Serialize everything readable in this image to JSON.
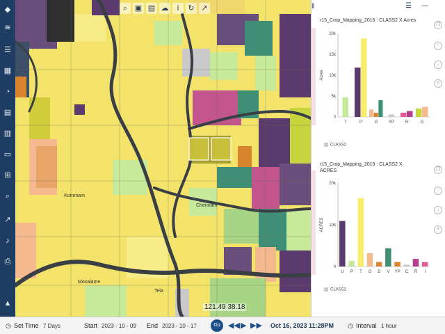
{
  "toolbar_left": {
    "icons": [
      "layers-icon",
      "stack-icon",
      "list-icon",
      "grid-icon",
      "pie-icon",
      "building-icon",
      "map-icon",
      "document-icon",
      "tree-icon",
      "search-icon",
      "chart-icon",
      "bell-icon",
      "print-icon",
      "compass-icon"
    ]
  },
  "map": {
    "toolbar_icons": [
      "zoom-icon",
      "save-icon",
      "document-icon",
      "cloud-icon",
      "info-icon",
      "refresh-icon",
      "share-icon"
    ],
    "coordinate": "121.49 38.18",
    "places": [
      "Moxalame",
      "Kommam",
      "Chennam",
      "Tela"
    ]
  },
  "panel": {
    "chart1_title": "r15_Crop_Mapping_2016 : CLASS2 X Acres",
    "chart1_legend": "CLASS2",
    "chart2_title_line1": "r15_Crop_Mapping_2019 : CLASS2 X",
    "chart2_title_line2": "ACRES",
    "chart2_legend": "CLASS2"
  },
  "chart_data": [
    {
      "type": "bar",
      "title": "r15_Crop_Mapping_2016 : CLASS2 X Acres",
      "xlabel": "",
      "ylabel": "Acres",
      "categories": [
        "T",
        "P",
        "D",
        "YP",
        "R",
        "G"
      ],
      "yticks": [
        "0",
        "5k",
        "10k",
        "15k",
        "20k"
      ],
      "ylim": [
        0,
        20000
      ],
      "bars": [
        {
          "category": "T",
          "value": 4700,
          "color": "#c6e99a"
        },
        {
          "category": "P",
          "value": 11800,
          "color": "#5b3b6e"
        },
        {
          "category": "P",
          "value": 18800,
          "color": "#f7ed6b"
        },
        {
          "category": "D",
          "value": 1800,
          "color": "#f4b98f"
        },
        {
          "category": "D",
          "value": 1000,
          "color": "#d9852f"
        },
        {
          "category": "D",
          "value": 4000,
          "color": "#3f8f76"
        },
        {
          "category": "YP",
          "value": 600,
          "color": "#c9c9c9"
        },
        {
          "category": "R",
          "value": 1000,
          "color": "#e05a93"
        },
        {
          "category": "R",
          "value": 1400,
          "color": "#b53f8e"
        },
        {
          "category": "G",
          "value": 2000,
          "color": "#c8d43e"
        },
        {
          "category": "G",
          "value": 2400,
          "color": "#f4b98f"
        }
      ],
      "legend": "CLASS2"
    },
    {
      "type": "bar",
      "title": "r15_Crop_Mapping_2019 : CLASS2 X ACRES",
      "xlabel": "",
      "ylabel": "ACRES",
      "categories": [
        "U",
        "P",
        "T",
        "G",
        "D",
        "V",
        "YP",
        "C",
        "R",
        "I"
      ],
      "yticks": [
        "0",
        "10k",
        "20k"
      ],
      "ylim": [
        0,
        22000
      ],
      "bars": [
        {
          "category": "U",
          "value": 12000,
          "color": "#5b3b6e"
        },
        {
          "category": "P",
          "value": 1500,
          "color": "#c6e99a"
        },
        {
          "category": "T",
          "value": 18000,
          "color": "#f7ed6b"
        },
        {
          "category": "G",
          "value": 3500,
          "color": "#f4b98f"
        },
        {
          "category": "D",
          "value": 1200,
          "color": "#d9852f"
        },
        {
          "category": "V",
          "value": 4800,
          "color": "#3f8f76"
        },
        {
          "category": "YP",
          "value": 1200,
          "color": "#d9852f"
        },
        {
          "category": "C",
          "value": 500,
          "color": "#c9c9c9"
        },
        {
          "category": "R",
          "value": 2000,
          "color": "#b53f8e"
        },
        {
          "category": "I",
          "value": 1200,
          "color": "#e05a93"
        }
      ],
      "legend": "CLASS2"
    }
  ],
  "bottom": {
    "set_time_label": "Set Time",
    "set_time_value": "7 Days",
    "start_label": "Start",
    "start_value": "2023 - 10 - 09",
    "end_label": "End",
    "end_value": "2023 - 10 - 17",
    "go_label": "Go",
    "datetime": "Oct 16, 2023 11:28PM",
    "interval_label": "Interval",
    "interval_value": "1 hour"
  },
  "colors": {
    "toolbar_bg": "#1f3d63",
    "accent": "#1f4f8a"
  }
}
